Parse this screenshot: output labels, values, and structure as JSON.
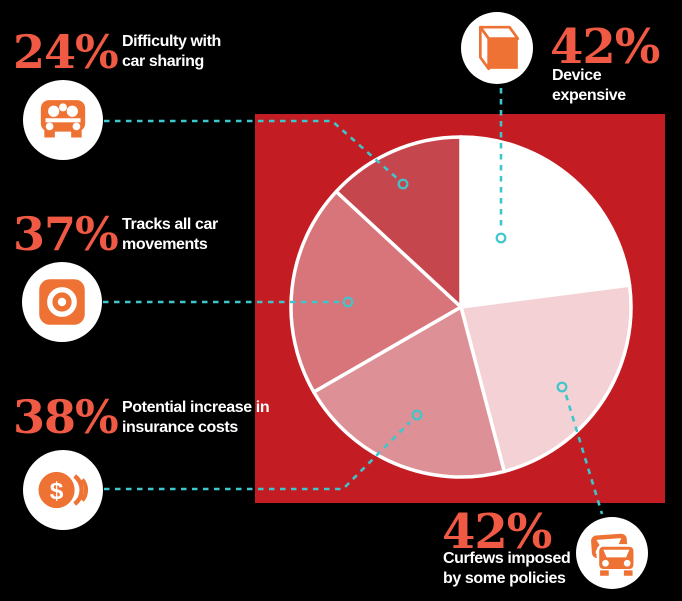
{
  "colors": {
    "background": "#000000",
    "red_panel": "#c31c22",
    "number_orange": "#f05a45",
    "icon_orange": "#ee7233",
    "connector_teal": "#3ec6cd",
    "label_white": "#ffffff",
    "pie_border": "#ffffff"
  },
  "chart_data": {
    "type": "pie",
    "unit": "%",
    "start_angle_deg": 0,
    "direction": "clockwise",
    "legend_position": "around",
    "slices": [
      {
        "label": "Device expensive",
        "value": 42,
        "color": "#ffffff"
      },
      {
        "label": "Curfews imposed by some policies",
        "value": 42,
        "color": "#f3d1d4"
      },
      {
        "label": "Potential increase in insurance costs",
        "value": 38,
        "color": "#dd9095"
      },
      {
        "label": "Tracks all car movements",
        "value": 37,
        "color": "#d7757b"
      },
      {
        "label": "Difficulty with car sharing",
        "value": 24,
        "color": "#c5474d"
      }
    ]
  },
  "callouts": {
    "car_sharing": {
      "value": "24%",
      "label": "Difficulty with\ncar sharing",
      "icon": "car-sharing-icon"
    },
    "tracking": {
      "value": "37%",
      "label": "Tracks all car\nmovements",
      "icon": "tracker-device-icon"
    },
    "insurance": {
      "value": "38%",
      "label": "Potential increase in\ninsurance costs",
      "icon": "dollar-coins-icon"
    },
    "device": {
      "value": "42%",
      "label": "Device\nexpensive",
      "icon": "device-box-icon"
    },
    "curfews": {
      "value": "42%",
      "label": "Curfews imposed\nby some policies",
      "icon": "traffic-cars-icon"
    }
  }
}
